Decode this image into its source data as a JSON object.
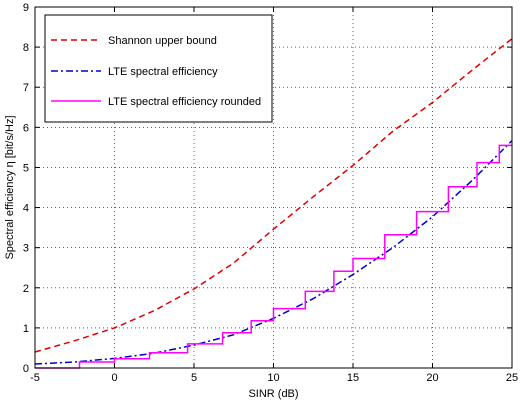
{
  "chart_data": {
    "type": "line",
    "title": "",
    "xlabel": "SINR (dB)",
    "ylabel": "Spectral efficiency η [bit/s/Hz]",
    "xlim": [
      -5,
      25
    ],
    "ylim": [
      0,
      9
    ],
    "xticks": [
      -5,
      0,
      5,
      10,
      15,
      20,
      25
    ],
    "yticks": [
      0,
      1,
      2,
      3,
      4,
      5,
      6,
      7,
      8,
      9
    ],
    "grid": true,
    "legend_position": "top-left",
    "series": [
      {
        "name": "Shannon upper bound",
        "style": "dashed",
        "color": "#e00000",
        "x": [
          -5,
          -2.5,
          0,
          2.5,
          5,
          7.5,
          10,
          12.5,
          15,
          17.5,
          20,
          22.5,
          25
        ],
        "y": [
          0.4,
          0.68,
          1.0,
          1.43,
          1.97,
          2.62,
          3.46,
          4.27,
          5.05,
          5.9,
          6.62,
          7.43,
          8.21
        ]
      },
      {
        "name": "LTE spectral efficiency",
        "style": "dashdot",
        "color": "#0000cc",
        "x": [
          -5,
          -2.5,
          0,
          2.5,
          5,
          7.5,
          10,
          12.5,
          15,
          17.5,
          20,
          22.5,
          25
        ],
        "y": [
          0.1,
          0.15,
          0.24,
          0.37,
          0.57,
          0.83,
          1.24,
          1.73,
          2.33,
          3.0,
          3.77,
          4.68,
          5.67
        ]
      },
      {
        "name": "LTE spectral efficiency rounded",
        "style": "step",
        "color": "#ff00ff",
        "x": [
          -5,
          -2.2,
          -2.2,
          0,
          0,
          2.2,
          2.2,
          4.6,
          4.6,
          6.8,
          6.8,
          8.6,
          8.6,
          10,
          10,
          12,
          12,
          13.8,
          13.8,
          15,
          15,
          17,
          17,
          19,
          19,
          21,
          21,
          22.8,
          22.8,
          24.2,
          24.2,
          25
        ],
        "y": [
          0.0,
          0.0,
          0.15,
          0.15,
          0.23,
          0.23,
          0.38,
          0.38,
          0.6,
          0.6,
          0.88,
          0.88,
          1.18,
          1.18,
          1.48,
          1.48,
          1.91,
          1.91,
          2.41,
          2.41,
          2.73,
          2.73,
          3.32,
          3.32,
          3.9,
          3.9,
          4.52,
          4.52,
          5.12,
          5.12,
          5.55,
          5.55
        ]
      }
    ]
  }
}
